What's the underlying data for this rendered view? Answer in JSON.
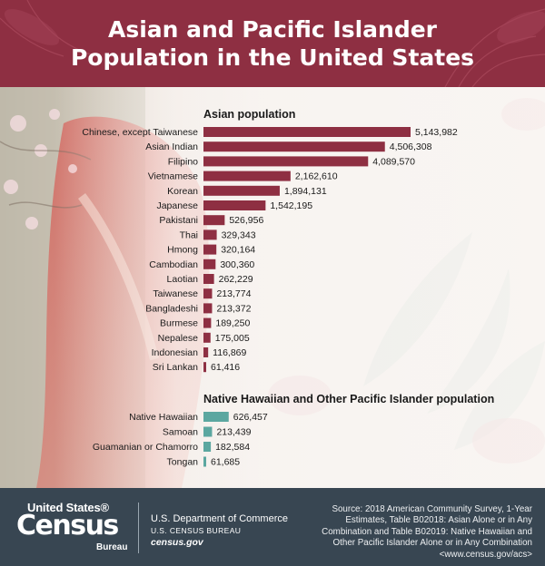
{
  "header": {
    "title_line1": "Asian and Pacific Islander",
    "title_line2": "Population in the United States"
  },
  "colors": {
    "header_bg": "#8e2f42",
    "asian_bar": "#8e2f42",
    "pacific_bar": "#5ba7a0",
    "footer_bg": "#384652"
  },
  "chart_data": [
    {
      "type": "bar",
      "orientation": "horizontal",
      "title": "Asian population",
      "categories": [
        "Chinese, except Taiwanese",
        "Asian Indian",
        "Filipino",
        "Vietnamese",
        "Korean",
        "Japanese",
        "Pakistani",
        "Thai",
        "Hmong",
        "Cambodian",
        "Laotian",
        "Taiwanese",
        "Bangladeshi",
        "Burmese",
        "Nepalese",
        "Indonesian",
        "Sri Lankan"
      ],
      "values": [
        5143982,
        4506308,
        4089570,
        2162610,
        1894131,
        1542195,
        526956,
        329343,
        320164,
        300360,
        262229,
        213774,
        213372,
        189250,
        175005,
        116869,
        61416
      ],
      "value_labels": [
        "5,143,982",
        "4,506,308",
        "4,089,570",
        "2,162,610",
        "1,894,131",
        "1,542,195",
        "526,956",
        "329,343",
        "320,164",
        "300,360",
        "262,229",
        "213,774",
        "213,372",
        "189,250",
        "175,005",
        "116,869",
        "61,416"
      ],
      "color": "#8e2f42",
      "grid": false
    },
    {
      "type": "bar",
      "orientation": "horizontal",
      "title": "Native Hawaiian and Other Pacific Islander population",
      "categories": [
        "Native Hawaiian",
        "Samoan",
        "Guamanian or Chamorro",
        "Tongan"
      ],
      "values": [
        626457,
        213439,
        182584,
        61685
      ],
      "value_labels": [
        "626,457",
        "213,439",
        "182,584",
        "61,685"
      ],
      "color": "#5ba7a0",
      "grid": false
    }
  ],
  "footer": {
    "logo_line1": "United States®",
    "logo_line2": "Census",
    "logo_line3": "Bureau",
    "dept_line1": "U.S. Department of Commerce",
    "dept_line2": "U.S. CENSUS BUREAU",
    "dept_line3": "census.gov",
    "source_lines": [
      "Source: 2018 American Community Survey, 1-Year",
      "Estimates, Table B02018: Asian Alone or in Any",
      "Combination and Table B02019: Native Hawaiian and",
      "Other Pacific Islander Alone or in Any Combination",
      "<www.census.gov/acs>"
    ]
  }
}
